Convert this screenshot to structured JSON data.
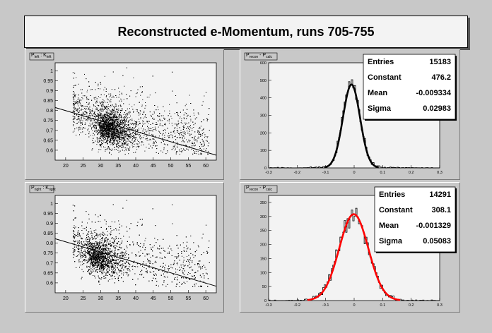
{
  "canvas_title": "Reconstructed e-Momentum, runs 705-755",
  "colors": {
    "background": "#c8c8c8",
    "frame": "#f3f3f3",
    "fit_black": "#000000",
    "fit_red": "#ff0000",
    "points": "#000000"
  },
  "chart_data": [
    {
      "type": "scatter",
      "title": "P_left : K_left",
      "title_main": "P",
      "title_sub1": "left",
      "title_sep": " : K",
      "title_sub2": "left",
      "xlim": [
        17,
        63
      ],
      "ylim": [
        0.55,
        1.04
      ],
      "xticks": [
        20,
        25,
        30,
        35,
        40,
        45,
        50,
        55,
        60
      ],
      "yticks": [
        0.6,
        0.65,
        0.7,
        0.75,
        0.8,
        0.85,
        0.9,
        0.95,
        1
      ],
      "fit_line": {
        "x": [
          17,
          63
        ],
        "y": [
          0.815,
          0.575
        ]
      },
      "n_points": 5000,
      "dense_center": [
        30,
        0.72
      ]
    },
    {
      "type": "bar",
      "title": "P_recon - P_calc",
      "title_a": "P",
      "title_a_sub": "recon",
      "title_sep": " - P",
      "title_b_sub": "calc",
      "xlim": [
        -0.3,
        0.3
      ],
      "ylim": [
        0,
        600
      ],
      "xticks": [
        -0.3,
        -0.2,
        -0.1,
        0,
        0.1,
        0.2,
        0.3
      ],
      "yticks": [
        0,
        100,
        200,
        300,
        400,
        500,
        600
      ],
      "nbins": 120,
      "fit": {
        "color": "#000000",
        "constant": 476.2,
        "mean": -0.009334,
        "sigma": 0.02983
      },
      "stats": [
        {
          "label": "Entries",
          "value": "15183"
        },
        {
          "label": "Constant",
          "value": "476.2"
        },
        {
          "label": "Mean",
          "value": "-0.009334"
        },
        {
          "label": "Sigma",
          "value": "0.02983"
        }
      ]
    },
    {
      "type": "scatter",
      "title": "P_right : K_right",
      "title_main": "P",
      "title_sub1": "right",
      "title_sep": " : K",
      "title_sub2": "right",
      "xlim": [
        17,
        63
      ],
      "ylim": [
        0.55,
        1.04
      ],
      "xticks": [
        20,
        25,
        30,
        35,
        40,
        45,
        50,
        55,
        60
      ],
      "yticks": [
        0.6,
        0.65,
        0.7,
        0.75,
        0.8,
        0.85,
        0.9,
        0.95,
        1
      ],
      "fit_line": {
        "x": [
          17,
          63
        ],
        "y": [
          0.822,
          0.583
        ]
      },
      "n_points": 5000,
      "dense_center": [
        27,
        0.74
      ]
    },
    {
      "type": "bar",
      "title": "P_recon - P_calc",
      "title_a": "P",
      "title_a_sub": "recon",
      "title_sep": " - P",
      "title_b_sub": "calc",
      "xlim": [
        -0.3,
        0.3
      ],
      "ylim": [
        0,
        375
      ],
      "xticks": [
        -0.3,
        -0.2,
        -0.1,
        0,
        0.1,
        0.2,
        0.3
      ],
      "yticks": [
        0,
        50,
        100,
        150,
        200,
        250,
        300,
        350
      ],
      "nbins": 120,
      "fit": {
        "color": "#ff0000",
        "constant": 308.1,
        "mean": -0.001329,
        "sigma": 0.05083
      },
      "stats": [
        {
          "label": "Entries",
          "value": "14291"
        },
        {
          "label": "Constant",
          "value": "308.1"
        },
        {
          "label": "Mean",
          "value": "-0.001329"
        },
        {
          "label": "Sigma",
          "value": "0.05083"
        }
      ]
    }
  ]
}
